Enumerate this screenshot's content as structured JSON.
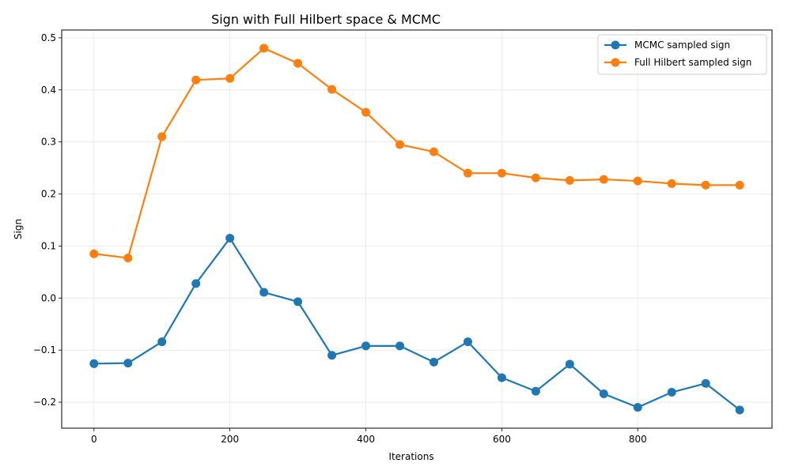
{
  "chart_data": {
    "type": "line",
    "title": "Sign with Full Hilbert space & MCMC",
    "xlabel": "Iterations",
    "ylabel": "Sign",
    "xlim": [
      -47.5,
      997.5
    ],
    "ylim": [
      -0.25,
      0.515
    ],
    "xticks": [
      0,
      200,
      400,
      600,
      800
    ],
    "yticks": [
      -0.2,
      -0.1,
      0.0,
      0.1,
      0.2,
      0.3,
      0.4,
      0.5
    ],
    "xtick_labels": [
      "0",
      "200",
      "400",
      "600",
      "800"
    ],
    "ytick_labels": [
      "−0.2",
      "−0.1",
      "0.0",
      "0.1",
      "0.2",
      "0.3",
      "0.4",
      "0.5"
    ],
    "grid": true,
    "legend_position": "top-right",
    "x": [
      0,
      50,
      100,
      150,
      200,
      250,
      300,
      350,
      400,
      450,
      500,
      550,
      600,
      650,
      700,
      750,
      800,
      850,
      900,
      950
    ],
    "series": [
      {
        "name": "MCMC sampled sign",
        "color": "#1f77b4",
        "values": [
          -0.126,
          -0.125,
          -0.084,
          0.028,
          0.115,
          0.011,
          -0.007,
          -0.11,
          -0.092,
          -0.092,
          -0.123,
          -0.084,
          -0.153,
          -0.179,
          -0.127,
          -0.184,
          -0.21,
          -0.181,
          -0.164,
          -0.215
        ]
      },
      {
        "name": "Full Hilbert sampled sign",
        "color": "#ff7f0e",
        "values": [
          0.085,
          0.077,
          0.31,
          0.419,
          0.422,
          0.48,
          0.451,
          0.401,
          0.357,
          0.295,
          0.281,
          0.24,
          0.24,
          0.231,
          0.226,
          0.228,
          0.225,
          0.22,
          0.217,
          0.217
        ]
      }
    ]
  }
}
